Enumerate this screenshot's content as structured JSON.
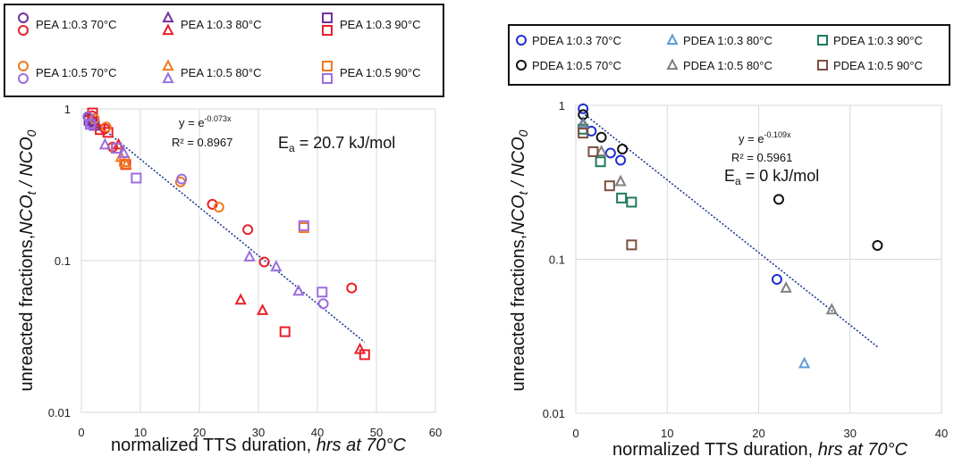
{
  "chart_data": [
    {
      "type": "scatter",
      "id": "left",
      "xlabel": "normalized TTS duration,",
      "xlabel_italic": "hrs at 70°C",
      "ylabel": "unreacted fractions,",
      "ylabel_italic": "NCO",
      "ylabel_sub1": "t",
      "ylabel_mid": " / NCO",
      "ylabel_sub2": "0",
      "xlim": [
        0,
        60
      ],
      "ylim": [
        0.01,
        1
      ],
      "yscale": "log",
      "x_ticks": [
        "0",
        "10",
        "20",
        "30",
        "40",
        "50",
        "60"
      ],
      "y_ticks": [
        "1",
        "0.1",
        "0.01"
      ],
      "grid": true,
      "legend_position": "top",
      "series": [
        {
          "name": "PEA 1:0.3 70°C",
          "marker": "circle",
          "color": "#7030a0",
          "x": [
            1.2,
            2.0
          ],
          "y": [
            0.88,
            0.82
          ]
        },
        {
          "name": "PEA 1:0.3 80°C",
          "marker": "triangle",
          "color": "#7030a0",
          "x": [
            1.5,
            2.5
          ],
          "y": [
            0.86,
            0.8
          ]
        },
        {
          "name": "PEA 1:0.3 90°C",
          "marker": "square",
          "color": "#7030a0",
          "x": [
            1.3,
            2.2
          ],
          "y": [
            0.84,
            0.78
          ]
        },
        {
          "name": "",
          "marker": "circle",
          "color": "#e8202a",
          "x": [
            1.8,
            4.0,
            5.3,
            22.2,
            28.2,
            31.0,
            45.8
          ],
          "y": [
            0.9,
            0.74,
            0.56,
            0.235,
            0.16,
            0.098,
            0.066
          ]
        },
        {
          "name": "",
          "marker": "triangle",
          "color": "#e8202a",
          "x": [
            6.3,
            27.0,
            30.7,
            47.2
          ],
          "y": [
            0.58,
            0.055,
            0.047,
            0.026
          ]
        },
        {
          "name": "",
          "marker": "square",
          "color": "#e8202a",
          "x": [
            1.9,
            3.2,
            4.5,
            7.5,
            34.5,
            48.0
          ],
          "y": [
            0.94,
            0.73,
            0.7,
            0.43,
            0.034,
            0.024
          ]
        },
        {
          "name": "PEA 1:0.5 70°C",
          "marker": "circle",
          "color": "#f07820",
          "x": [
            2.2,
            4.2,
            16.8,
            23.3
          ],
          "y": [
            0.86,
            0.76,
            0.33,
            0.225
          ]
        },
        {
          "name": "PEA 1:0.5 80°C",
          "marker": "triangle",
          "color": "#f07820",
          "x": [
            6.7,
            7.6
          ],
          "y": [
            0.48,
            0.43
          ]
        },
        {
          "name": "PEA 1:0.5 90°C",
          "marker": "square",
          "color": "#f07820",
          "x": [
            5.9,
            7.3,
            37.7
          ],
          "y": [
            0.55,
            0.45,
            0.165
          ]
        },
        {
          "name": "",
          "marker": "circle",
          "color": "#9b6de0",
          "x": [
            1.1,
            1.6,
            17.0,
            41.0
          ],
          "y": [
            0.89,
            0.8,
            0.345,
            0.052
          ]
        },
        {
          "name": "",
          "marker": "triangle",
          "color": "#9b6de0",
          "x": [
            4.0,
            7.2,
            28.5,
            33.0,
            36.8
          ],
          "y": [
            0.58,
            0.51,
            0.106,
            0.091,
            0.063
          ]
        },
        {
          "name": "",
          "marker": "square",
          "color": "#9b6de0",
          "x": [
            1.5,
            6.0,
            9.3,
            37.7,
            40.8
          ],
          "y": [
            0.79,
            0.55,
            0.35,
            0.17,
            0.062
          ]
        }
      ],
      "trendline": {
        "x": [
          1,
          48
        ],
        "y": [
          0.9,
          0.029
        ]
      },
      "annotations": {
        "eq_prefix": "y = e",
        "eq_exp": "-0.073x",
        "r2": "R² = 0.8967",
        "ea_E": "E",
        "ea_sub": "a",
        "ea_rest": " = 20.7 kJ/mol"
      }
    },
    {
      "type": "scatter",
      "id": "right",
      "xlabel": "normalized TTS duration,",
      "xlabel_italic": "hrs at 70°C",
      "ylabel": "unreacted fractions,",
      "ylabel_italic": "NCO",
      "ylabel_sub1": "t",
      "ylabel_mid": " / NCO",
      "ylabel_sub2": "0",
      "xlim": [
        0,
        40
      ],
      "ylim": [
        0.01,
        1
      ],
      "yscale": "log",
      "x_ticks": [
        "0",
        "10",
        "20",
        "30",
        "40"
      ],
      "y_ticks": [
        "1",
        "0.1",
        "0.01"
      ],
      "grid": true,
      "legend_position": "top",
      "series": [
        {
          "name": "PDEA 1:0.3 70°C",
          "marker": "circle",
          "color": "#1f2fd0",
          "x": [
            0.8,
            1.7,
            3.8,
            4.9,
            22.0
          ],
          "y": [
            0.95,
            0.68,
            0.49,
            0.44,
            0.074
          ]
        },
        {
          "name": "PDEA 1:0.3 80°C",
          "marker": "triangle",
          "color": "#5b9bd5",
          "x": [
            0.8,
            25.0
          ],
          "y": [
            0.77,
            0.021
          ]
        },
        {
          "name": "PDEA 1:0.3 90°C",
          "marker": "square",
          "color": "#1e7a5c",
          "x": [
            0.8,
            2.7,
            5.0,
            6.1
          ],
          "y": [
            0.7,
            0.43,
            0.25,
            0.235
          ]
        },
        {
          "name": "PDEA 1:0.5 70°C",
          "marker": "circle",
          "color": "#111111",
          "x": [
            0.8,
            2.8,
            5.1,
            22.2,
            33.0
          ],
          "y": [
            0.87,
            0.62,
            0.52,
            0.245,
            0.123
          ]
        },
        {
          "name": "PDEA 1:0.5 80°C",
          "marker": "triangle",
          "color": "#808080",
          "x": [
            0.8,
            2.8,
            4.9,
            23.0,
            28.0
          ],
          "y": [
            0.75,
            0.5,
            0.32,
            0.065,
            0.047
          ]
        },
        {
          "name": "PDEA 1:0.5 90°C",
          "marker": "square",
          "color": "#7b5040",
          "x": [
            0.8,
            1.9,
            3.7,
            6.1
          ],
          "y": [
            0.66,
            0.5,
            0.3,
            0.124
          ]
        }
      ],
      "trendline": {
        "x": [
          1,
          33
        ],
        "y": [
          0.87,
          0.027
        ]
      },
      "annotations": {
        "eq_prefix": "y = e",
        "eq_exp": "-0.109x",
        "r2": "R² = 0.5961",
        "ea_E": "E",
        "ea_sub": "a",
        "ea_rest": " = 0 kJ/mol"
      }
    }
  ]
}
